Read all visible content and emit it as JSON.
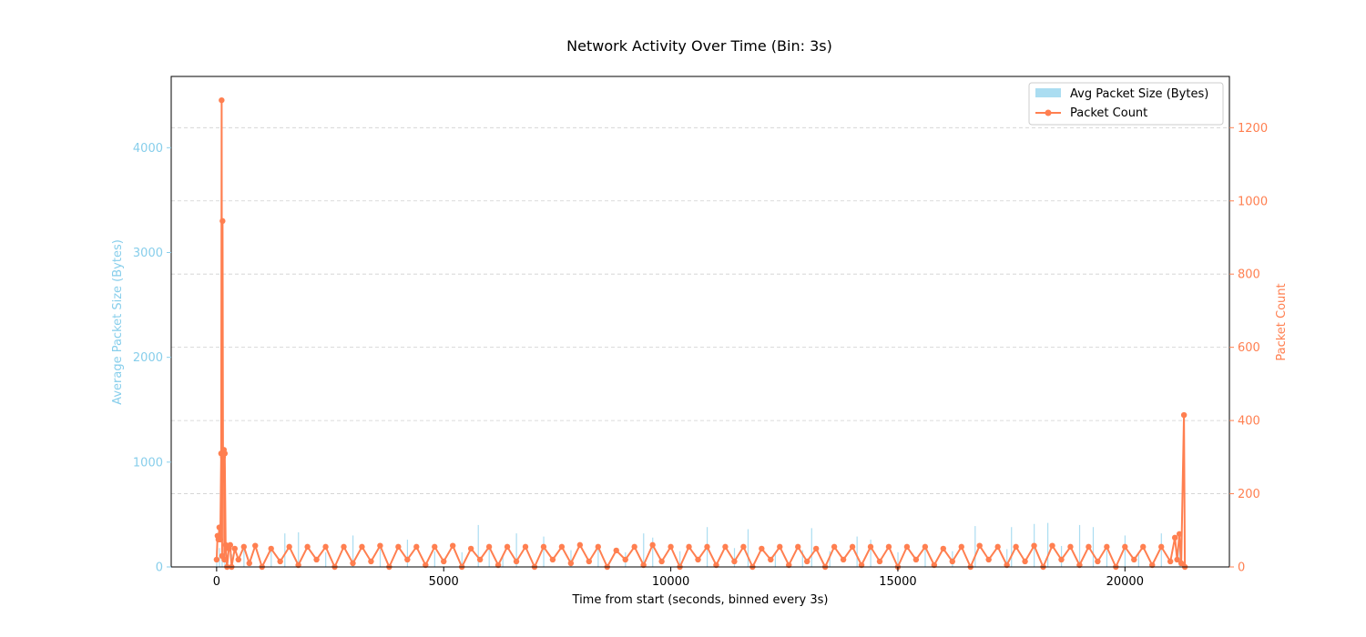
{
  "chart_data": {
    "type": "bar+line",
    "title": "Network Activity Over Time (Bin: 3s)",
    "xlabel": "Time from start (seconds, binned every 3s)",
    "ylabel_left": "Average Packet Size (Bytes)",
    "ylabel_right": "Packet Count",
    "xlim": [
      -1000,
      22300
    ],
    "ylim_left": [
      0,
      4680
    ],
    "ylim_right": [
      0,
      1340
    ],
    "x_ticks": [
      0,
      5000,
      10000,
      15000,
      20000
    ],
    "x_tick_labels": [
      "0",
      "5000",
      "10000",
      "15000",
      "20000"
    ],
    "y_left_ticks": [
      0,
      1000,
      2000,
      3000,
      4000
    ],
    "y_left_tick_labels": [
      "0",
      "1000",
      "2000",
      "3000",
      "4000"
    ],
    "y_right_ticks": [
      0,
      200,
      400,
      600,
      800,
      1000,
      1200
    ],
    "y_right_tick_labels": [
      "0",
      "200",
      "400",
      "600",
      "800",
      "1000",
      "1200"
    ],
    "grid": "horizontal dashed",
    "legend_placement": "top-right",
    "colors": {
      "bars": "#87CEEB",
      "line": "#FF7F50",
      "left_axis": "#87CEEB",
      "right_axis": "#FF7F50"
    },
    "series": [
      {
        "name": "Avg Packet Size (Bytes)",
        "kind": "bar",
        "axis": "left",
        "points": [
          [
            0,
            160
          ],
          [
            60,
            180
          ],
          [
            120,
            900
          ],
          [
            180,
            260
          ],
          [
            330,
            120
          ],
          [
            600,
            180
          ],
          [
            1200,
            150
          ],
          [
            1500,
            320
          ],
          [
            1800,
            330
          ],
          [
            2400,
            140
          ],
          [
            3000,
            300
          ],
          [
            3600,
            170
          ],
          [
            4200,
            260
          ],
          [
            4800,
            150
          ],
          [
            5400,
            140
          ],
          [
            5760,
            400
          ],
          [
            6000,
            200
          ],
          [
            6300,
            120
          ],
          [
            6600,
            320
          ],
          [
            7200,
            290
          ],
          [
            7800,
            160
          ],
          [
            8400,
            180
          ],
          [
            9000,
            140
          ],
          [
            9400,
            320
          ],
          [
            9600,
            280
          ],
          [
            10200,
            150
          ],
          [
            10800,
            380
          ],
          [
            11400,
            180
          ],
          [
            11700,
            360
          ],
          [
            12300,
            140
          ],
          [
            12900,
            160
          ],
          [
            13100,
            370
          ],
          [
            13500,
            150
          ],
          [
            14100,
            290
          ],
          [
            14400,
            260
          ],
          [
            15000,
            140
          ],
          [
            15600,
            170
          ],
          [
            16200,
            150
          ],
          [
            16700,
            390
          ],
          [
            17400,
            170
          ],
          [
            17500,
            380
          ],
          [
            18000,
            410
          ],
          [
            18300,
            420
          ],
          [
            18600,
            200
          ],
          [
            19000,
            400
          ],
          [
            19300,
            380
          ],
          [
            19600,
            160
          ],
          [
            20000,
            300
          ],
          [
            20300,
            140
          ],
          [
            20800,
            320
          ],
          [
            21200,
            230
          ]
        ]
      },
      {
        "name": "Packet Count",
        "kind": "line",
        "axis": "right",
        "points": [
          [
            0,
            20
          ],
          [
            20,
            85
          ],
          [
            40,
            75
          ],
          [
            60,
            108
          ],
          [
            80,
            75
          ],
          [
            100,
            310
          ],
          [
            110,
            1275
          ],
          [
            120,
            30
          ],
          [
            130,
            945
          ],
          [
            140,
            300
          ],
          [
            160,
            320
          ],
          [
            170,
            20
          ],
          [
            180,
            310
          ],
          [
            200,
            60
          ],
          [
            230,
            0
          ],
          [
            270,
            50
          ],
          [
            300,
            60
          ],
          [
            330,
            0
          ],
          [
            400,
            50
          ],
          [
            480,
            20
          ],
          [
            600,
            55
          ],
          [
            720,
            10
          ],
          [
            850,
            58
          ],
          [
            1000,
            0
          ],
          [
            1200,
            50
          ],
          [
            1400,
            15
          ],
          [
            1600,
            55
          ],
          [
            1800,
            5
          ],
          [
            2000,
            55
          ],
          [
            2200,
            20
          ],
          [
            2400,
            55
          ],
          [
            2600,
            0
          ],
          [
            2800,
            55
          ],
          [
            3000,
            10
          ],
          [
            3200,
            55
          ],
          [
            3400,
            15
          ],
          [
            3600,
            58
          ],
          [
            3800,
            0
          ],
          [
            4000,
            55
          ],
          [
            4200,
            20
          ],
          [
            4400,
            55
          ],
          [
            4600,
            5
          ],
          [
            4800,
            55
          ],
          [
            5000,
            15
          ],
          [
            5200,
            58
          ],
          [
            5400,
            0
          ],
          [
            5600,
            50
          ],
          [
            5800,
            20
          ],
          [
            6000,
            55
          ],
          [
            6200,
            5
          ],
          [
            6400,
            55
          ],
          [
            6600,
            15
          ],
          [
            6800,
            55
          ],
          [
            7000,
            0
          ],
          [
            7200,
            55
          ],
          [
            7400,
            20
          ],
          [
            7600,
            55
          ],
          [
            7800,
            10
          ],
          [
            8000,
            60
          ],
          [
            8200,
            15
          ],
          [
            8400,
            55
          ],
          [
            8600,
            0
          ],
          [
            8800,
            45
          ],
          [
            9000,
            20
          ],
          [
            9200,
            55
          ],
          [
            9400,
            5
          ],
          [
            9600,
            60
          ],
          [
            9800,
            15
          ],
          [
            10000,
            55
          ],
          [
            10200,
            0
          ],
          [
            10400,
            55
          ],
          [
            10600,
            20
          ],
          [
            10800,
            55
          ],
          [
            11000,
            5
          ],
          [
            11200,
            55
          ],
          [
            11400,
            15
          ],
          [
            11600,
            55
          ],
          [
            11800,
            0
          ],
          [
            12000,
            50
          ],
          [
            12200,
            20
          ],
          [
            12400,
            55
          ],
          [
            12600,
            5
          ],
          [
            12800,
            55
          ],
          [
            13000,
            15
          ],
          [
            13200,
            50
          ],
          [
            13400,
            0
          ],
          [
            13600,
            55
          ],
          [
            13800,
            20
          ],
          [
            14000,
            55
          ],
          [
            14200,
            5
          ],
          [
            14400,
            55
          ],
          [
            14600,
            15
          ],
          [
            14800,
            55
          ],
          [
            15000,
            0
          ],
          [
            15200,
            55
          ],
          [
            15400,
            20
          ],
          [
            15600,
            55
          ],
          [
            15800,
            5
          ],
          [
            16000,
            50
          ],
          [
            16200,
            15
          ],
          [
            16400,
            55
          ],
          [
            16600,
            0
          ],
          [
            16800,
            58
          ],
          [
            17000,
            20
          ],
          [
            17200,
            55
          ],
          [
            17400,
            5
          ],
          [
            17600,
            55
          ],
          [
            17800,
            15
          ],
          [
            18000,
            58
          ],
          [
            18200,
            0
          ],
          [
            18400,
            58
          ],
          [
            18600,
            20
          ],
          [
            18800,
            55
          ],
          [
            19000,
            5
          ],
          [
            19200,
            55
          ],
          [
            19400,
            15
          ],
          [
            19600,
            55
          ],
          [
            19800,
            0
          ],
          [
            20000,
            55
          ],
          [
            20200,
            20
          ],
          [
            20400,
            55
          ],
          [
            20600,
            5
          ],
          [
            20800,
            55
          ],
          [
            21000,
            15
          ],
          [
            21100,
            80
          ],
          [
            21150,
            20
          ],
          [
            21200,
            90
          ],
          [
            21240,
            10
          ],
          [
            21300,
            415
          ],
          [
            21320,
            0
          ]
        ]
      }
    ]
  }
}
